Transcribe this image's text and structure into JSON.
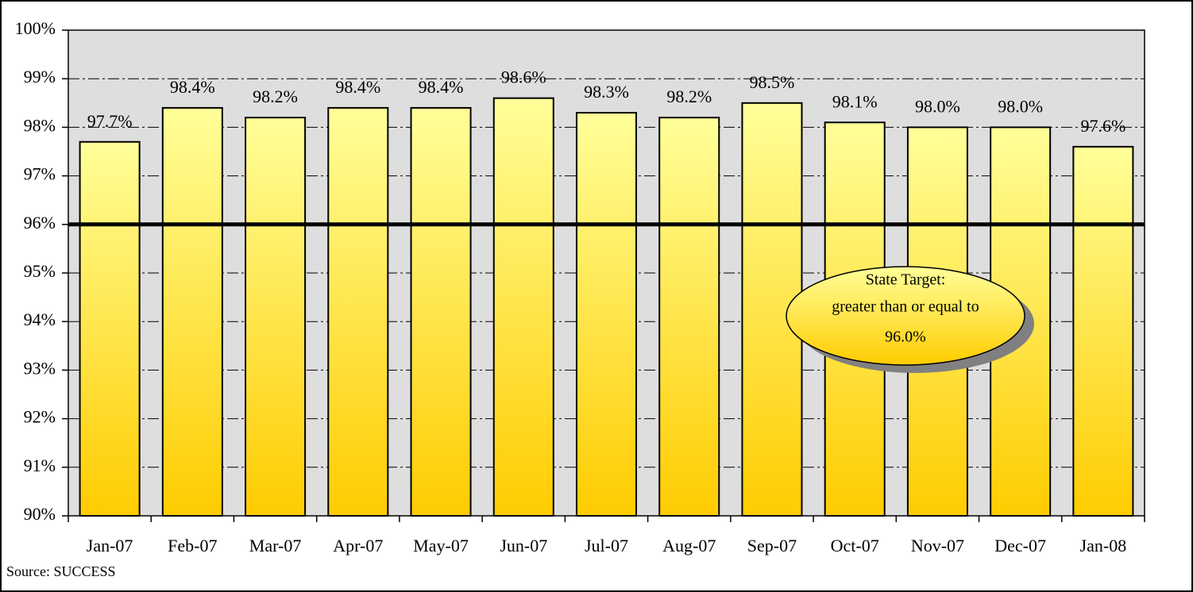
{
  "chart_data": {
    "type": "bar",
    "categories": [
      "Jan-07",
      "Feb-07",
      "Mar-07",
      "Apr-07",
      "May-07",
      "Jun-07",
      "Jul-07",
      "Aug-07",
      "Sep-07",
      "Oct-07",
      "Nov-07",
      "Dec-07",
      "Jan-08"
    ],
    "values": [
      97.7,
      98.4,
      98.2,
      98.4,
      98.4,
      98.6,
      98.3,
      98.2,
      98.5,
      98.1,
      98.0,
      98.0,
      97.6
    ],
    "value_labels": [
      "97.7%",
      "98.4%",
      "98.2%",
      "98.4%",
      "98.4%",
      "98.6%",
      "98.3%",
      "98.2%",
      "98.5%",
      "98.1%",
      "98.0%",
      "98.0%",
      "97.6%"
    ],
    "color": "#ffd21a",
    "ylim": [
      90,
      100
    ],
    "yticks": [
      {
        "value": 90,
        "label": "90%"
      },
      {
        "value": 91,
        "label": "91%"
      },
      {
        "value": 92,
        "label": "92%"
      },
      {
        "value": 93,
        "label": "93%"
      },
      {
        "value": 94,
        "label": "94%"
      },
      {
        "value": 95,
        "label": "95%"
      },
      {
        "value": 96,
        "label": "96%"
      },
      {
        "value": 97,
        "label": "97%"
      },
      {
        "value": 98,
        "label": "98%"
      },
      {
        "value": 99,
        "label": "99%"
      },
      {
        "value": 100,
        "label": "100%"
      }
    ],
    "grid": true,
    "target": 96,
    "annotation": [
      "State Target:",
      "greater than or equal to",
      "96.0%"
    ],
    "source": "Source: SUCCESS"
  }
}
